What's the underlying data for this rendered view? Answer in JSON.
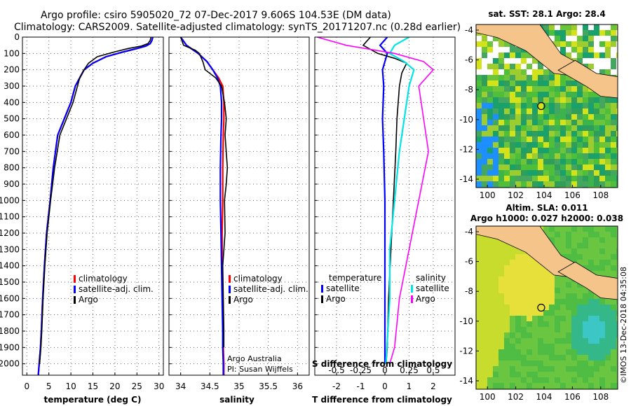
{
  "header": {
    "line1": "Argo profile: csiro 5905020_72 07-Dec-2017 9.606S 104.53E (DM data)",
    "line2": "Climatology: CARS2009. Satellite-adjusted climatology: synTS_20171207.nc (0.28d earlier)"
  },
  "colors": {
    "climatology": "#ff0000",
    "satellite": "#0000ff",
    "argo": "#000000",
    "sat_salinity": "#00e5e5",
    "argo_salinity": "#ff00ff",
    "land": "#f5c48a"
  },
  "chart_data": [
    {
      "type": "line",
      "id": "temperature",
      "xlabel": "temperature (deg C)",
      "ylabel": "",
      "xlim": [
        -1,
        31
      ],
      "ylim": [
        2070,
        0
      ],
      "xticks": [
        0,
        5,
        10,
        15,
        20,
        25,
        30
      ],
      "yticks": [
        0,
        100,
        200,
        300,
        400,
        500,
        600,
        700,
        800,
        900,
        1000,
        1100,
        1200,
        1300,
        1400,
        1500,
        1600,
        1700,
        1800,
        1900,
        2000
      ],
      "legend": [
        "climatology",
        "satellite-adj. clim.",
        "Argo"
      ],
      "series": [
        {
          "name": "climatology",
          "color": "#ff0000",
          "x": [
            28.6,
            28.4,
            28,
            27,
            25,
            22,
            18,
            15,
            13,
            12,
            11,
            10,
            8.5,
            7,
            6,
            5.3,
            4.5,
            4,
            3.6,
            3.3,
            3.1,
            2.8,
            2.6
          ],
          "y": [
            0,
            20,
            40,
            55,
            70,
            90,
            120,
            160,
            200,
            250,
            300,
            400,
            500,
            600,
            800,
            1000,
            1200,
            1400,
            1600,
            1800,
            1900,
            2000,
            2070
          ]
        },
        {
          "name": "satellite-adj. clim.",
          "color": "#0000ff",
          "x": [
            28.6,
            28.4,
            28,
            27,
            25,
            22,
            18,
            15,
            13,
            12,
            11,
            10,
            8.5,
            7,
            6,
            5.3,
            4.5,
            4,
            3.6,
            3.3,
            3.1,
            2.8,
            2.6
          ],
          "y": [
            0,
            20,
            40,
            55,
            70,
            90,
            120,
            160,
            200,
            250,
            300,
            400,
            500,
            600,
            800,
            1000,
            1200,
            1400,
            1600,
            1800,
            1900,
            2000,
            2070
          ]
        },
        {
          "name": "Argo",
          "color": "#000000",
          "x": [
            28.2,
            28,
            27.5,
            26,
            23,
            20,
            16,
            14,
            13,
            12,
            11.5,
            10.5,
            9,
            7.5,
            6.3,
            5.4,
            4.6,
            4.1,
            3.7,
            3.4,
            3.2,
            2.9
          ],
          "y": [
            0,
            20,
            40,
            55,
            70,
            90,
            120,
            160,
            200,
            250,
            300,
            400,
            500,
            600,
            800,
            1000,
            1200,
            1400,
            1600,
            1800,
            1900,
            2000
          ]
        }
      ]
    },
    {
      "type": "line",
      "id": "salinity",
      "xlabel": "salinity",
      "xlim": [
        33.8,
        36.2
      ],
      "ylim": [
        2070,
        0
      ],
      "xticks": [
        34,
        34.5,
        35,
        35.5,
        36
      ],
      "xticklabels": [
        "34",
        "34.5",
        "35",
        "35.5",
        "36"
      ],
      "legend": [
        "climatology",
        "satellite-adj. clim.",
        "Argo"
      ],
      "annotation": [
        "Argo Australia",
        "PI: Susan Wijffels"
      ],
      "series": [
        {
          "name": "climatology",
          "color": "#ff0000",
          "x": [
            34.0,
            34.1,
            34.3,
            34.45,
            34.55,
            34.65,
            34.72,
            34.74,
            34.74,
            34.73,
            34.72,
            34.72,
            34.71,
            34.71,
            34.72,
            34.73,
            34.73,
            34.74,
            34.74
          ],
          "y": [
            0,
            50,
            100,
            150,
            200,
            250,
            300,
            400,
            500,
            600,
            800,
            1000,
            1200,
            1400,
            1600,
            1800,
            1900,
            2000,
            2070
          ]
        },
        {
          "name": "satellite-adj. clim.",
          "color": "#0000ff",
          "x": [
            34.0,
            34.1,
            34.3,
            34.45,
            34.55,
            34.63,
            34.68,
            34.7,
            34.7,
            34.69,
            34.68,
            34.68,
            34.69,
            34.7,
            34.71,
            34.72,
            34.72,
            34.73,
            34.73
          ],
          "y": [
            0,
            50,
            100,
            150,
            200,
            250,
            300,
            400,
            500,
            600,
            800,
            1000,
            1200,
            1400,
            1600,
            1800,
            1900,
            2000,
            2070
          ]
        },
        {
          "name": "Argo",
          "color": "#000000",
          "x": [
            34.0,
            34.05,
            34.25,
            34.32,
            34.38,
            34.42,
            34.6,
            34.7,
            34.75,
            34.78,
            34.76,
            34.8,
            34.78,
            34.75,
            34.76,
            34.72,
            34.73,
            34.74,
            34.74
          ],
          "y": [
            0,
            50,
            80,
            100,
            150,
            200,
            250,
            300,
            400,
            500,
            600,
            800,
            900,
            1000,
            1200,
            1400,
            1600,
            1800,
            1900
          ]
        }
      ]
    },
    {
      "type": "line",
      "id": "difference",
      "xlabel": "T difference from climatology",
      "xlabel2": "S difference from climatology",
      "xlim": [
        -2.9,
        2.9
      ],
      "ylim": [
        2070,
        0
      ],
      "xticks": [
        -2,
        -1,
        0,
        1,
        2
      ],
      "sticks": [
        "-0.5",
        "-0.25",
        "0",
        "0.25",
        "0.5"
      ],
      "legend_left_title": "temperature",
      "legend_left": [
        "satellite",
        "Argo"
      ],
      "legend_right_title": "salinity",
      "legend_right": [
        "satellite",
        "Argo"
      ],
      "series": [
        {
          "name": "temperature satellite",
          "color": "#0000ff",
          "x": [
            0.1,
            -0.2,
            0.1,
            0,
            -0.1,
            -0.05,
            -0.1,
            -0.05,
            0,
            0,
            0,
            0,
            0
          ],
          "y": [
            0,
            50,
            100,
            150,
            200,
            300,
            500,
            700,
            1000,
            1300,
            1600,
            1900,
            2000
          ]
        },
        {
          "name": "temperature Argo",
          "color": "#000000",
          "x": [
            -0.6,
            -0.9,
            -0.3,
            0.4,
            0.9,
            0.7,
            0.6,
            0.5,
            0.45,
            0.35,
            0.25,
            0.15,
            0.1,
            0.05
          ],
          "y": [
            0,
            50,
            100,
            130,
            160,
            220,
            300,
            500,
            700,
            1000,
            1300,
            1600,
            1900,
            2000
          ]
        },
        {
          "name": "salinity satellite",
          "color": "#00e5e5",
          "x": [
            0.25,
            0.1,
            0.05,
            0.2,
            0.3,
            0.25,
            0.2,
            0.15,
            0.1,
            0.05,
            0.05,
            0.02,
            0.01
          ],
          "y": [
            0,
            50,
            100,
            150,
            200,
            300,
            500,
            700,
            1000,
            1300,
            1600,
            1900,
            2000
          ]
        },
        {
          "name": "salinity Argo",
          "color": "#ff00ff",
          "x": [
            -0.7,
            -0.4,
            0.1,
            0.4,
            0.5,
            0.35,
            0.4,
            0.45,
            0.35,
            0.25,
            0.15,
            0.1,
            0.05
          ],
          "y": [
            0,
            50,
            100,
            150,
            200,
            300,
            500,
            700,
            1000,
            1300,
            1600,
            1900,
            2000
          ]
        }
      ]
    }
  ],
  "maps": {
    "top": {
      "title": "sat. SST: 28.1 Argo: 28.4",
      "xticks": [
        "100",
        "102",
        "104",
        "106",
        "108"
      ],
      "yticks": [
        "-4",
        "-6",
        "-8",
        "-10",
        "-12",
        "-14"
      ]
    },
    "bottom": {
      "title1": "Altim. SLA: 0.011",
      "title2": "Argo h1000: 0.027 h2000: 0.038",
      "xticks": [
        "100",
        "102",
        "104",
        "106",
        "108"
      ],
      "yticks": [
        "-4",
        "-6",
        "-8",
        "-10",
        "-12",
        "-14"
      ]
    }
  },
  "footer": {
    "credit": "©IMOS 13-Dec-2018 04:35:08"
  }
}
